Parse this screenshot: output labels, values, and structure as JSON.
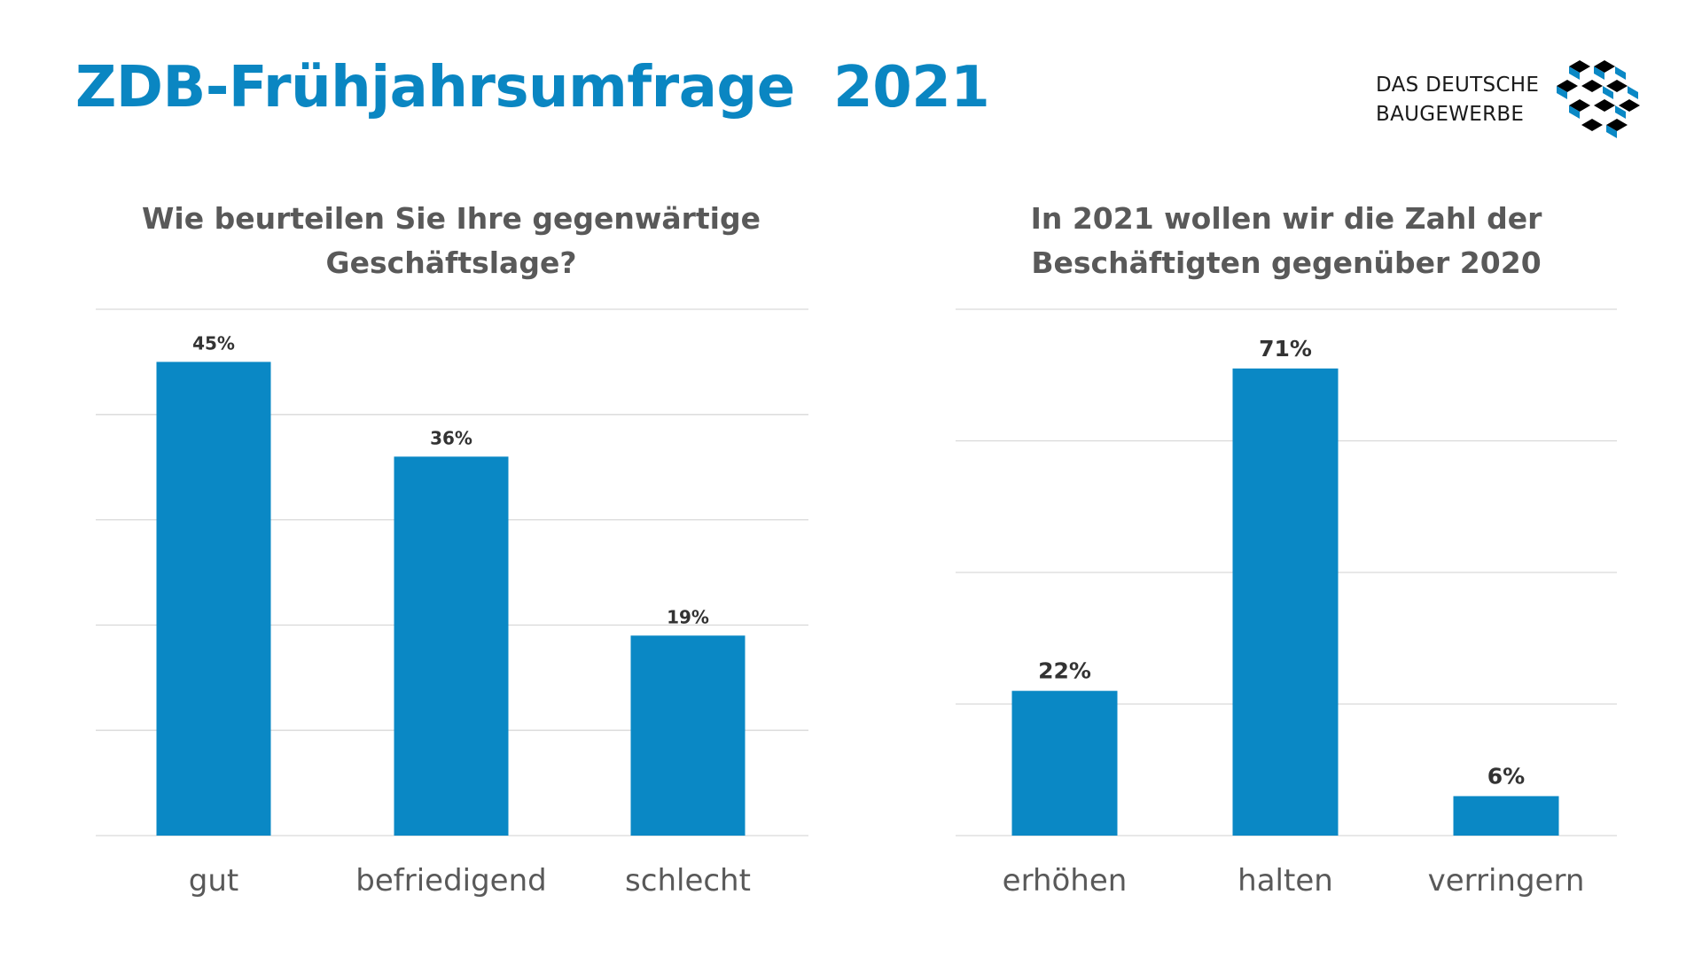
{
  "page": {
    "title": "ZDB-Frühjahrsumfrage  2021"
  },
  "logo": {
    "line1": "DAS DEUTSCHE",
    "line2": "BAUGEWERBE",
    "icon": "cube-stack-icon",
    "colors": [
      "#000000",
      "#0a88c5"
    ]
  },
  "colors": {
    "title": "#0a86c2",
    "bar": "#0a88c5",
    "gridline": "#d9d9d9",
    "text": "#595959"
  },
  "chart_data": [
    {
      "type": "bar",
      "title": "Wie beurteilen Sie Ihre gegenwärtige Geschäftslage?",
      "title_lines": [
        "Wie beurteilen Sie Ihre gegenwärtige",
        "Geschäftslage?"
      ],
      "categories": [
        "gut",
        "befriedigend",
        "schlecht"
      ],
      "values": [
        45,
        36,
        19
      ],
      "data_labels": [
        "45%",
        "36%",
        "19%"
      ],
      "ylim": [
        0,
        50
      ],
      "grid": true,
      "legend": false
    },
    {
      "type": "bar",
      "title": "In 2021 wollen wir die Zahl der Beschäftigten gegenüber 2020",
      "title_lines": [
        "In 2021 wollen wir die Zahl der",
        "Beschäftigten gegenüber 2020"
      ],
      "categories": [
        "erhöhen",
        "halten",
        "verringern"
      ],
      "values": [
        22,
        71,
        6
      ],
      "data_labels": [
        "22%",
        "71%",
        "6%"
      ],
      "ylim": [
        0,
        80
      ],
      "grid": true,
      "legend": false
    }
  ]
}
